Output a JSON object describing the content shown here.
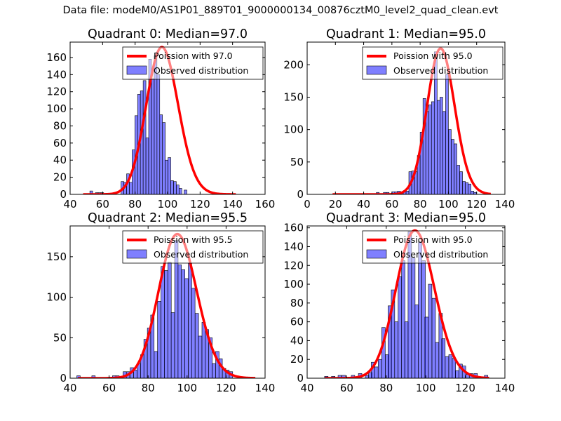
{
  "figure_title": "Data file: modeM0/AS1P01_889T01_9000000134_00876cztM0_level2_quad_clean.evt",
  "colors": {
    "bar_fill": "#0000ff",
    "bar_fill_alpha": 0.5,
    "bar_edge": "#000000",
    "curve": "#ff0000",
    "legend_edge": "#000000",
    "axes_edge": "#000000"
  },
  "chart_data": [
    {
      "type": "bar",
      "title": "Quadrant 0: Median=97.0",
      "xlabel": "",
      "ylabel": "",
      "xlim": [
        40,
        160
      ],
      "ylim": [
        0,
        178
      ],
      "xticks": [
        40,
        60,
        80,
        100,
        120,
        140,
        160
      ],
      "yticks": [
        0,
        20,
        40,
        60,
        80,
        100,
        120,
        140,
        160
      ],
      "grid": false,
      "legend": {
        "placement": "top-right",
        "entries": [
          "Poission with 97.0",
          "Observed distribution"
        ]
      },
      "bin_width": 1.7,
      "bars": [
        {
          "x": 53.0,
          "y": 4
        },
        {
          "x": 56.4,
          "y": 2
        },
        {
          "x": 58.1,
          "y": 2
        },
        {
          "x": 59.8,
          "y": 2
        },
        {
          "x": 72.2,
          "y": 15
        },
        {
          "x": 73.9,
          "y": 14
        },
        {
          "x": 75.6,
          "y": 24
        },
        {
          "x": 77.3,
          "y": 14
        },
        {
          "x": 79.0,
          "y": 52
        },
        {
          "x": 80.7,
          "y": 92
        },
        {
          "x": 82.4,
          "y": 117
        },
        {
          "x": 84.1,
          "y": 121
        },
        {
          "x": 85.8,
          "y": 133
        },
        {
          "x": 87.5,
          "y": 66
        },
        {
          "x": 89.2,
          "y": 158
        },
        {
          "x": 90.9,
          "y": 135
        },
        {
          "x": 92.6,
          "y": 162
        },
        {
          "x": 94.3,
          "y": 140
        },
        {
          "x": 96.0,
          "y": 93
        },
        {
          "x": 97.7,
          "y": 84
        },
        {
          "x": 99.4,
          "y": 40
        },
        {
          "x": 101.1,
          "y": 43
        },
        {
          "x": 102.8,
          "y": 16
        },
        {
          "x": 104.5,
          "y": 15
        },
        {
          "x": 106.2,
          "y": 11
        },
        {
          "x": 107.9,
          "y": 7
        },
        {
          "x": 111.0,
          "y": 5
        }
      ],
      "bars_note": "",
      "poisson": {
        "label": "Poission with 97.0",
        "lambda": 97.0,
        "peak": 172,
        "x_range": [
          48,
          142
        ]
      }
    },
    {
      "type": "bar",
      "title": "Quadrant 1: Median=95.0",
      "xlabel": "",
      "ylabel": "",
      "xlim": [
        0,
        140
      ],
      "ylim": [
        0,
        235
      ],
      "xticks": [
        0,
        20,
        40,
        60,
        80,
        100,
        120,
        140
      ],
      "yticks": [
        0,
        50,
        100,
        150,
        200
      ],
      "grid": false,
      "legend": {
        "placement": "top-right",
        "entries": [
          "Poission with 95.0",
          "Observed distribution"
        ]
      },
      "bin_width": 2.0,
      "bars": [
        {
          "x": 50,
          "y": 3
        },
        {
          "x": 55,
          "y": 3
        },
        {
          "x": 57,
          "y": 3
        },
        {
          "x": 61,
          "y": 4
        },
        {
          "x": 63,
          "y": 4
        },
        {
          "x": 65,
          "y": 5
        },
        {
          "x": 67,
          "y": 4
        },
        {
          "x": 69,
          "y": 5
        },
        {
          "x": 71,
          "y": 5
        },
        {
          "x": 73,
          "y": 35
        },
        {
          "x": 75,
          "y": 36
        },
        {
          "x": 77,
          "y": 35
        },
        {
          "x": 79,
          "y": 60
        },
        {
          "x": 81,
          "y": 96
        },
        {
          "x": 83,
          "y": 148
        },
        {
          "x": 85,
          "y": 128
        },
        {
          "x": 87,
          "y": 138
        },
        {
          "x": 89,
          "y": 143
        },
        {
          "x": 91,
          "y": 220
        },
        {
          "x": 93,
          "y": 145
        },
        {
          "x": 95,
          "y": 150
        },
        {
          "x": 97,
          "y": 128
        },
        {
          "x": 99,
          "y": 185
        },
        {
          "x": 101,
          "y": 100
        },
        {
          "x": 103,
          "y": 85
        },
        {
          "x": 105,
          "y": 78
        },
        {
          "x": 107,
          "y": 45
        },
        {
          "x": 109,
          "y": 35
        },
        {
          "x": 111,
          "y": 20
        },
        {
          "x": 113,
          "y": 18
        },
        {
          "x": 115,
          "y": 16
        },
        {
          "x": 117,
          "y": 5
        },
        {
          "x": 119,
          "y": 3
        }
      ],
      "poisson": {
        "label": "Poission with 95.0",
        "lambda": 95.0,
        "peak": 225,
        "x_range": [
          18,
          130
        ]
      }
    },
    {
      "type": "bar",
      "title": "Quadrant 2: Median=95.5",
      "xlabel": "",
      "ylabel": "",
      "xlim": [
        40,
        140
      ],
      "ylim": [
        0,
        188
      ],
      "xticks": [
        40,
        60,
        80,
        100,
        120,
        140
      ],
      "yticks": [
        0,
        50,
        100,
        150
      ],
      "grid": false,
      "legend": {
        "placement": "top-right",
        "entries": [
          "Poission with 95.5",
          "Observed distribution"
        ]
      },
      "bin_width": 1.75,
      "bars": [
        {
          "x": 44.3,
          "y": 3
        },
        {
          "x": 52.0,
          "y": 3
        },
        {
          "x": 62.6,
          "y": 3
        },
        {
          "x": 64.3,
          "y": 3
        },
        {
          "x": 68.0,
          "y": 8
        },
        {
          "x": 69.7,
          "y": 8
        },
        {
          "x": 71.7,
          "y": 13
        },
        {
          "x": 73.5,
          "y": 10
        },
        {
          "x": 75.2,
          "y": 18
        },
        {
          "x": 77.0,
          "y": 29
        },
        {
          "x": 78.7,
          "y": 48
        },
        {
          "x": 80.5,
          "y": 62
        },
        {
          "x": 82.2,
          "y": 78
        },
        {
          "x": 84.0,
          "y": 33
        },
        {
          "x": 85.7,
          "y": 95
        },
        {
          "x": 87.5,
          "y": 138
        },
        {
          "x": 89.2,
          "y": 133
        },
        {
          "x": 91.0,
          "y": 143
        },
        {
          "x": 92.7,
          "y": 81
        },
        {
          "x": 94.5,
          "y": 170
        },
        {
          "x": 96.2,
          "y": 140
        },
        {
          "x": 98.0,
          "y": 134
        },
        {
          "x": 99.7,
          "y": 123
        },
        {
          "x": 101.5,
          "y": 142
        },
        {
          "x": 103.2,
          "y": 111
        },
        {
          "x": 105.0,
          "y": 80
        },
        {
          "x": 106.7,
          "y": 52
        },
        {
          "x": 108.5,
          "y": 69
        },
        {
          "x": 110.2,
          "y": 60
        },
        {
          "x": 112.0,
          "y": 50
        },
        {
          "x": 113.7,
          "y": 18
        },
        {
          "x": 115.5,
          "y": 33
        },
        {
          "x": 117.2,
          "y": 24
        },
        {
          "x": 119.0,
          "y": 12
        },
        {
          "x": 120.7,
          "y": 10
        },
        {
          "x": 122.5,
          "y": 8
        }
      ],
      "poisson": {
        "label": "Poission with 95.5",
        "lambda": 95.5,
        "peak": 178,
        "x_range": [
          44,
          135
        ]
      }
    },
    {
      "type": "bar",
      "title": "Quadrant 3: Median=95.0",
      "xlabel": "",
      "ylabel": "",
      "xlim": [
        40,
        140
      ],
      "ylim": [
        0,
        162
      ],
      "xticks": [
        40,
        60,
        80,
        100,
        120,
        140
      ],
      "yticks": [
        0,
        20,
        40,
        60,
        80,
        100,
        120,
        140,
        160
      ],
      "grid": false,
      "legend": {
        "placement": "top-right",
        "entries": [
          "Poission with 95.0",
          "Observed distribution"
        ]
      },
      "bin_width": 1.75,
      "bars": [
        {
          "x": 49.7,
          "y": 2
        },
        {
          "x": 53.2,
          "y": 2
        },
        {
          "x": 56.5,
          "y": 3
        },
        {
          "x": 58.5,
          "y": 3
        },
        {
          "x": 63.2,
          "y": 3
        },
        {
          "x": 66.8,
          "y": 5
        },
        {
          "x": 70.3,
          "y": 3
        },
        {
          "x": 71.9,
          "y": 6
        },
        {
          "x": 73.3,
          "y": 17
        },
        {
          "x": 75.0,
          "y": 12
        },
        {
          "x": 76.8,
          "y": 20
        },
        {
          "x": 78.6,
          "y": 54
        },
        {
          "x": 80.4,
          "y": 25
        },
        {
          "x": 81.8,
          "y": 77
        },
        {
          "x": 83.4,
          "y": 94
        },
        {
          "x": 85.1,
          "y": 60
        },
        {
          "x": 86.9,
          "y": 108
        },
        {
          "x": 88.6,
          "y": 125
        },
        {
          "x": 90.2,
          "y": 60
        },
        {
          "x": 91.9,
          "y": 156
        },
        {
          "x": 93.7,
          "y": 128
        },
        {
          "x": 95.4,
          "y": 78
        },
        {
          "x": 97.1,
          "y": 145
        },
        {
          "x": 98.9,
          "y": 125
        },
        {
          "x": 100.4,
          "y": 65
        },
        {
          "x": 102.2,
          "y": 100
        },
        {
          "x": 104.0,
          "y": 85
        },
        {
          "x": 105.7,
          "y": 38
        },
        {
          "x": 107.5,
          "y": 69
        },
        {
          "x": 108.9,
          "y": 42
        },
        {
          "x": 110.7,
          "y": 23
        },
        {
          "x": 112.5,
          "y": 25
        },
        {
          "x": 114.2,
          "y": 21
        },
        {
          "x": 115.8,
          "y": 8
        },
        {
          "x": 117.6,
          "y": 15
        },
        {
          "x": 119.3,
          "y": 13
        },
        {
          "x": 121.1,
          "y": 4
        },
        {
          "x": 122.9,
          "y": 5
        },
        {
          "x": 125.2,
          "y": 5
        },
        {
          "x": 130.5,
          "y": 3
        }
      ],
      "poisson": {
        "label": "Poission with 95.0",
        "lambda": 95.0,
        "peak": 157,
        "x_range": [
          49,
          132
        ]
      }
    }
  ]
}
